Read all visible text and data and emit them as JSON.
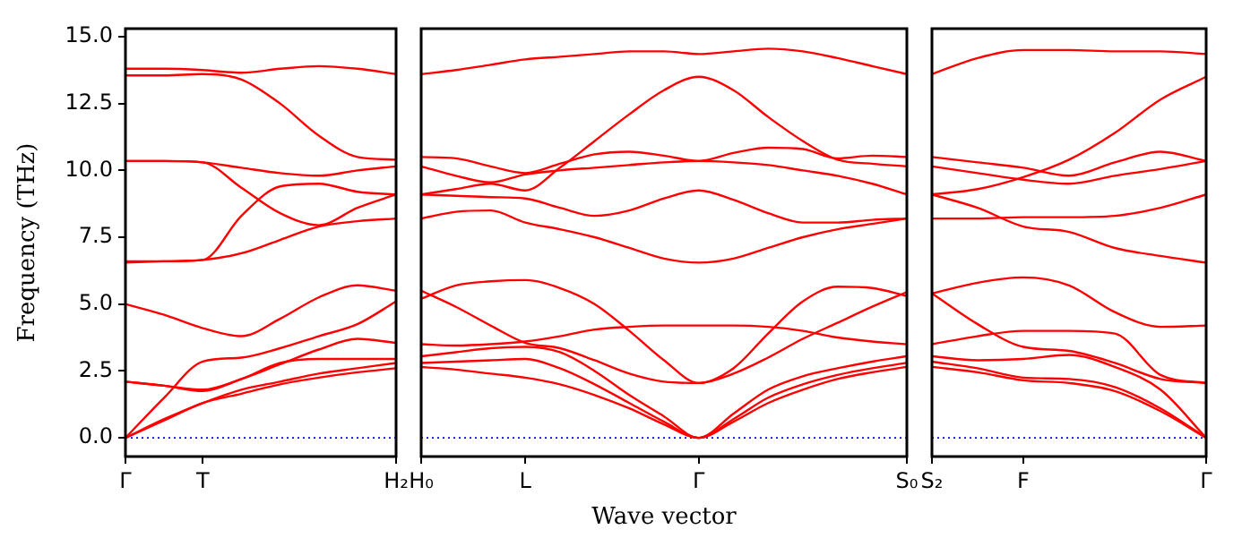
{
  "chart_data": [
    {
      "type": "line",
      "ylabel": "Frequency (THz)",
      "categories": [
        "Γ",
        null,
        "T",
        null,
        null,
        null,
        null,
        "H₂"
      ],
      "ylim": [
        -0.7,
        15.3
      ],
      "yticks": [
        {
          "value": 0,
          "label": "0.0"
        },
        2.5,
        {
          "value": 5,
          "label": "5.0"
        },
        7.5,
        {
          "value": 10,
          "label": "10.0"
        },
        12.5,
        {
          "value": 15,
          "label": "15.0"
        }
      ],
      "marker": "none",
      "line_style": "solid",
      "ref_lines": [
        {
          "axis": "y",
          "value": 0,
          "color": "#0000ff",
          "line_style": "dotted"
        }
      ],
      "series": [
        {
          "color": "#ff0000",
          "values": [
            13.8,
            13.8,
            13.75,
            13.65,
            13.8,
            13.9,
            13.8,
            13.6
          ]
        },
        {
          "color": "#ff0000",
          "values": [
            13.55,
            13.55,
            13.6,
            13.4,
            12.5,
            11.3,
            10.5,
            10.4
          ]
        },
        {
          "color": "#ff0000",
          "values": [
            10.35,
            10.35,
            10.3,
            10.1,
            9.9,
            9.8,
            10.0,
            10.15
          ]
        },
        {
          "color": "#ff0000",
          "values": [
            10.35,
            10.35,
            10.3,
            9.35,
            8.4,
            7.95,
            8.6,
            9.1
          ]
        },
        {
          "color": "#ff0000",
          "values": [
            6.6,
            6.6,
            6.65,
            8.3,
            9.4,
            9.5,
            9.2,
            9.1
          ]
        },
        {
          "color": "#ff0000",
          "values": [
            6.55,
            6.6,
            6.65,
            6.9,
            7.4,
            7.9,
            8.1,
            8.2
          ]
        },
        {
          "color": "#ff0000",
          "values": [
            5.0,
            4.6,
            4.1,
            3.8,
            4.45,
            5.25,
            5.7,
            5.5
          ]
        },
        {
          "color": "#ff0000",
          "values": [
            0,
            1.5,
            2.85,
            3.0,
            3.35,
            3.8,
            4.25,
            5.1
          ]
        },
        {
          "color": "#ff0000",
          "values": [
            2.1,
            1.95,
            1.75,
            2.2,
            2.75,
            3.3,
            3.7,
            3.55
          ]
        },
        {
          "color": "#ff0000",
          "values": [
            2.1,
            1.95,
            1.8,
            2.2,
            2.8,
            2.95,
            2.95,
            2.95
          ]
        },
        {
          "color": "#ff0000",
          "values": [
            0,
            0.7,
            1.3,
            1.8,
            2.1,
            2.4,
            2.6,
            2.8
          ]
        },
        {
          "color": "#ff0000",
          "values": [
            0,
            0.65,
            1.3,
            1.65,
            2.0,
            2.25,
            2.45,
            2.6
          ]
        }
      ]
    },
    {
      "type": "line",
      "xlabel": "Wave vector",
      "categories": [
        "H₀",
        null,
        null,
        "L",
        null,
        null,
        null,
        null,
        "Γ",
        null,
        null,
        null,
        null,
        null,
        "S₀"
      ],
      "ylim": [
        -0.7,
        15.3
      ],
      "tick_labels": "x",
      "marker": "none",
      "line_style": "solid",
      "ref_lines": [
        {
          "axis": "y",
          "value": 0,
          "color": "#0000ff",
          "line_style": "dotted"
        }
      ],
      "series": [
        {
          "color": "#ff0000",
          "values": [
            13.6,
            13.75,
            13.95,
            14.15,
            14.25,
            14.35,
            14.45,
            14.45,
            14.35,
            14.45,
            14.55,
            14.45,
            14.2,
            13.9,
            13.6
          ]
        },
        {
          "color": "#ff0000",
          "values": [
            9.1,
            9.3,
            9.5,
            9.25,
            10.1,
            11.1,
            12.1,
            13.0,
            13.5,
            13.0,
            12.0,
            11.1,
            10.4,
            10.25,
            10.15
          ]
        },
        {
          "color": "#ff0000",
          "values": [
            10.5,
            10.45,
            10.15,
            9.9,
            10.25,
            10.6,
            10.7,
            10.55,
            10.35,
            10.65,
            10.85,
            10.8,
            10.45,
            10.55,
            10.5
          ]
        },
        {
          "color": "#ff0000",
          "values": [
            10.15,
            9.8,
            9.55,
            9.85,
            10.0,
            10.1,
            10.2,
            10.3,
            10.35,
            10.3,
            10.2,
            10.0,
            9.8,
            9.5,
            9.1
          ]
        },
        {
          "color": "#ff0000",
          "values": [
            9.1,
            9.05,
            9.0,
            8.95,
            8.6,
            8.3,
            8.5,
            8.95,
            9.25,
            8.9,
            8.4,
            8.05,
            8.05,
            8.15,
            8.2
          ]
        },
        {
          "color": "#ff0000",
          "values": [
            8.2,
            8.45,
            8.5,
            8.05,
            7.8,
            7.5,
            7.1,
            6.7,
            6.55,
            6.7,
            7.1,
            7.5,
            7.8,
            8.0,
            8.2
          ]
        },
        {
          "color": "#ff0000",
          "values": [
            5.2,
            5.7,
            5.85,
            5.9,
            5.6,
            5.0,
            4.0,
            2.9,
            2.05,
            2.6,
            3.9,
            5.1,
            5.65,
            5.6,
            5.3
          ]
        },
        {
          "color": "#ff0000",
          "values": [
            5.5,
            4.9,
            4.2,
            3.55,
            3.35,
            2.9,
            2.4,
            2.1,
            2.05,
            2.4,
            3.0,
            3.7,
            4.3,
            4.9,
            5.45
          ]
        },
        {
          "color": "#ff0000",
          "values": [
            3.5,
            3.45,
            3.5,
            3.6,
            3.8,
            4.05,
            4.15,
            4.2,
            4.2,
            4.2,
            4.15,
            4.0,
            3.75,
            3.6,
            3.5
          ]
        },
        {
          "color": "#ff0000",
          "values": [
            3.05,
            3.2,
            3.35,
            3.4,
            3.2,
            2.5,
            1.6,
            0.8,
            0,
            0.9,
            1.8,
            2.3,
            2.6,
            2.85,
            3.05
          ]
        },
        {
          "color": "#ff0000",
          "values": [
            2.8,
            2.85,
            2.9,
            2.95,
            2.6,
            2.0,
            1.3,
            0.6,
            0,
            0.7,
            1.5,
            2.0,
            2.35,
            2.6,
            2.8
          ]
        },
        {
          "color": "#ff0000",
          "values": [
            2.65,
            2.55,
            2.4,
            2.25,
            2.0,
            1.6,
            1.1,
            0.5,
            0,
            0.6,
            1.3,
            1.8,
            2.2,
            2.45,
            2.65
          ]
        }
      ]
    },
    {
      "type": "line",
      "categories": [
        "S₂",
        null,
        "F",
        null,
        null,
        null,
        "Γ"
      ],
      "ylim": [
        -0.7,
        15.3
      ],
      "tick_labels": "x",
      "marker": "none",
      "line_style": "solid",
      "ref_lines": [
        {
          "axis": "y",
          "value": 0,
          "color": "#0000ff",
          "line_style": "dotted"
        }
      ],
      "series": [
        {
          "color": "#ff0000",
          "values": [
            13.6,
            14.2,
            14.5,
            14.5,
            14.45,
            14.45,
            14.35
          ]
        },
        {
          "color": "#ff0000",
          "values": [
            9.1,
            9.3,
            9.75,
            10.4,
            11.4,
            12.65,
            13.5
          ]
        },
        {
          "color": "#ff0000",
          "values": [
            10.5,
            10.3,
            10.1,
            9.8,
            10.3,
            10.7,
            10.35
          ]
        },
        {
          "color": "#ff0000",
          "values": [
            10.15,
            9.9,
            9.65,
            9.5,
            9.8,
            10.05,
            10.35
          ]
        },
        {
          "color": "#ff0000",
          "values": [
            9.1,
            8.6,
            7.9,
            7.7,
            7.1,
            6.8,
            6.55
          ]
        },
        {
          "color": "#ff0000",
          "values": [
            8.2,
            8.2,
            8.25,
            8.25,
            8.3,
            8.6,
            9.1
          ]
        },
        {
          "color": "#ff0000",
          "values": [
            5.4,
            5.8,
            6.0,
            5.7,
            4.7,
            4.15,
            4.2
          ]
        },
        {
          "color": "#ff0000",
          "values": [
            5.4,
            4.25,
            3.4,
            3.25,
            2.8,
            2.2,
            2.05
          ]
        },
        {
          "color": "#ff0000",
          "values": [
            3.5,
            3.8,
            4.0,
            4.0,
            3.9,
            2.35,
            2.05
          ]
        },
        {
          "color": "#ff0000",
          "values": [
            3.05,
            2.9,
            2.95,
            3.1,
            2.65,
            1.8,
            0
          ]
        },
        {
          "color": "#ff0000",
          "values": [
            2.85,
            2.6,
            2.25,
            2.2,
            1.9,
            1.1,
            0
          ]
        },
        {
          "color": "#ff0000",
          "values": [
            2.65,
            2.45,
            2.15,
            2.05,
            1.75,
            1.0,
            0
          ]
        }
      ]
    }
  ]
}
